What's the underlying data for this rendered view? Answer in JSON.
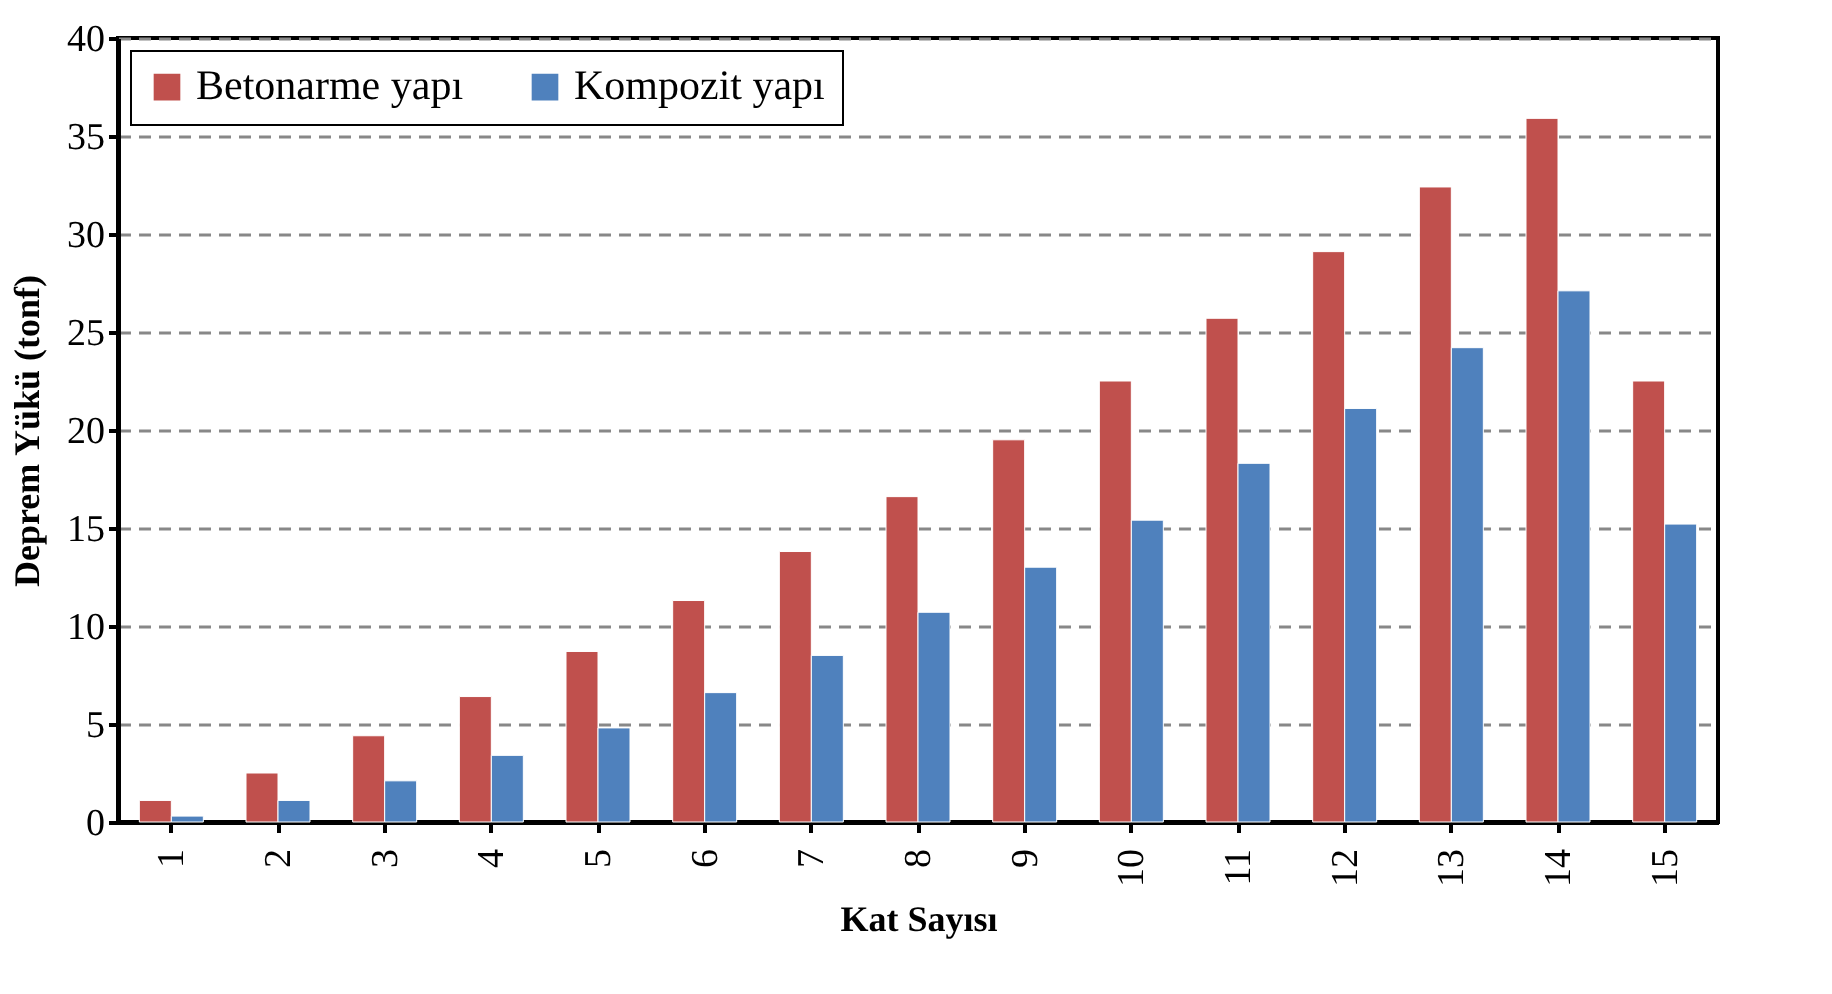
{
  "chart_data": {
    "type": "bar",
    "xlabel": "Kat Sayısı",
    "ylabel": "Deprem Yükü (tonf)",
    "categories": [
      "1",
      "2",
      "3",
      "4",
      "5",
      "6",
      "7",
      "8",
      "9",
      "10",
      "11",
      "12",
      "13",
      "14",
      "15"
    ],
    "series": [
      {
        "name": "Betonarme yapı",
        "color": "#c0504d",
        "values": [
          1.1,
          2.5,
          4.4,
          6.4,
          8.7,
          11.3,
          13.8,
          16.6,
          19.5,
          22.5,
          25.7,
          29.1,
          32.4,
          35.9,
          22.5
        ]
      },
      {
        "name": "Kompozit yapı",
        "color": "#4f81bd",
        "values": [
          0.3,
          1.1,
          2.1,
          3.4,
          4.8,
          6.6,
          8.5,
          10.7,
          13.0,
          15.4,
          18.3,
          21.1,
          24.2,
          27.1,
          15.2
        ]
      }
    ],
    "ylim": [
      0,
      40
    ],
    "yticks": [
      0,
      5,
      10,
      15,
      20,
      25,
      30,
      35,
      40
    ],
    "grid": "y",
    "legend": "top left"
  }
}
